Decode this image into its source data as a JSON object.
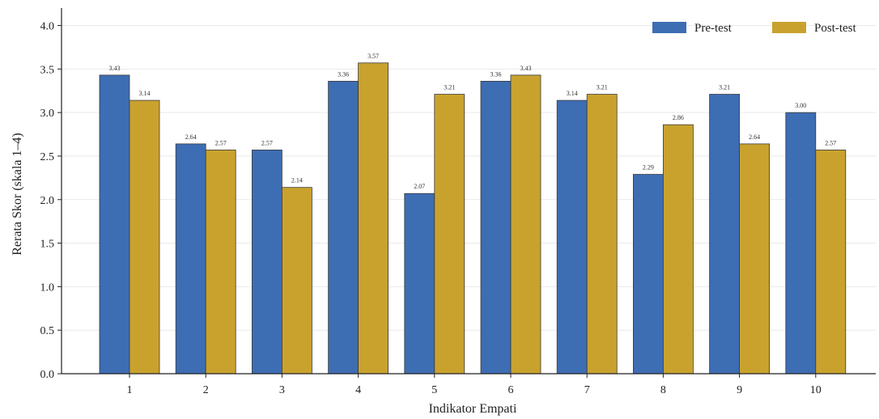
{
  "chart_data": {
    "type": "bar",
    "xlabel": "Indikator Empati",
    "ylabel": "Rerata Skor (skala 1–4)",
    "categories": [
      "1",
      "2",
      "3",
      "4",
      "5",
      "6",
      "7",
      "8",
      "9",
      "10"
    ],
    "series": [
      {
        "name": "Pre-test",
        "color": "#3d6db3",
        "values": [
          3.43,
          2.64,
          2.57,
          3.36,
          2.07,
          3.36,
          3.14,
          2.29,
          3.21,
          3.0
        ],
        "labels": [
          "3.43",
          "2.64",
          "2.57",
          "3.36",
          "2.07",
          "3.36",
          "3.14",
          "2.29",
          "3.21",
          "3.00"
        ]
      },
      {
        "name": "Post-test",
        "color": "#c9a22e",
        "values": [
          3.14,
          2.57,
          2.14,
          3.57,
          3.21,
          3.43,
          3.21,
          2.86,
          2.64,
          2.57
        ],
        "labels": [
          "3.14",
          "2.57",
          "2.14",
          "3.57",
          "3.21",
          "3.43",
          "3.21",
          "2.86",
          "2.64",
          "2.57"
        ]
      }
    ],
    "ylim": [
      0,
      4.2
    ],
    "yticks": [
      "0.0",
      "0.5",
      "1.0",
      "1.5",
      "2.0",
      "2.5",
      "3.0",
      "3.5",
      "4.0"
    ],
    "grid": true,
    "legend": "top-right"
  }
}
